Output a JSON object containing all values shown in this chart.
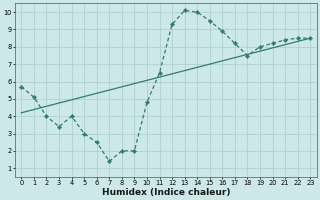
{
  "xlabel": "Humidex (Indice chaleur)",
  "ylabel": "",
  "bg_color": "#cce8e8",
  "line_color": "#2e7d72",
  "xlim": [
    -0.5,
    23.5
  ],
  "ylim": [
    0.5,
    10.5
  ],
  "xticks": [
    0,
    1,
    2,
    3,
    4,
    5,
    6,
    7,
    8,
    9,
    10,
    11,
    12,
    13,
    14,
    15,
    16,
    17,
    18,
    19,
    20,
    21,
    22,
    23
  ],
  "yticks": [
    1,
    2,
    3,
    4,
    5,
    6,
    7,
    8,
    9,
    10
  ],
  "line1_x": [
    0,
    1,
    2,
    3,
    4,
    5,
    6,
    7,
    8,
    9,
    10,
    11,
    12,
    13,
    14,
    15,
    16,
    17,
    18,
    19,
    20,
    21,
    22,
    23
  ],
  "line1_y": [
    5.7,
    5.1,
    4.0,
    3.4,
    4.0,
    3.0,
    2.5,
    1.4,
    2.0,
    2.0,
    4.8,
    6.5,
    9.3,
    10.1,
    10.0,
    9.5,
    8.9,
    8.2,
    7.5,
    8.0,
    8.2,
    8.4,
    8.5,
    8.5
  ],
  "line2_x": [
    0,
    23
  ],
  "line2_y": [
    4.2,
    8.5
  ],
  "marker": "D",
  "markersize": 2.2,
  "grid_color": "#aacccc",
  "xlabel_fontsize": 6.5,
  "tick_fontsize": 4.8
}
